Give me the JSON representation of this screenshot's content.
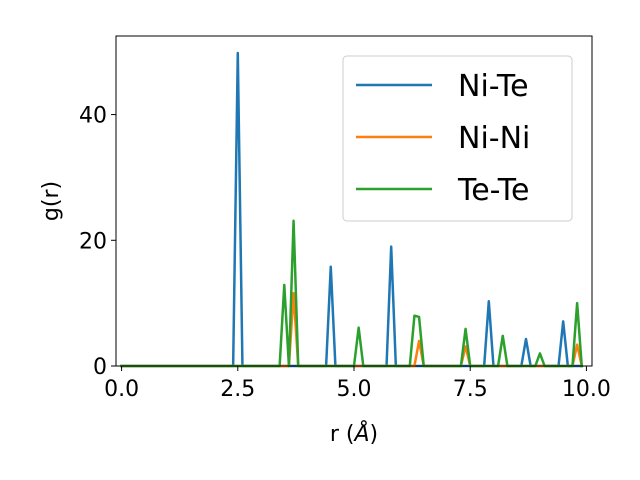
{
  "chart_data": {
    "type": "line",
    "xlabel_main": "r (",
    "xlabel_unit": "Å",
    "xlabel_close": ")",
    "ylabel": "g(r)",
    "xlim": [
      -0.12,
      10.12
    ],
    "ylim": [
      0,
      52.5
    ],
    "xticks": [
      0.0,
      2.5,
      5.0,
      7.5,
      10.0
    ],
    "xtick_labels": [
      "0.0",
      "2.5",
      "5.0",
      "7.5",
      "10.0"
    ],
    "yticks": [
      0,
      20,
      40
    ],
    "ytick_labels": [
      "0",
      "20",
      "40"
    ],
    "grid": false,
    "legend_position": "top-right",
    "series": [
      {
        "name": "Ni-Te",
        "color": "#1f77b4",
        "points": [
          [
            0.0,
            0
          ],
          [
            2.4,
            0
          ],
          [
            2.5,
            49.8
          ],
          [
            2.6,
            0
          ],
          [
            4.4,
            0
          ],
          [
            4.5,
            15.8
          ],
          [
            4.6,
            0
          ],
          [
            5.7,
            0
          ],
          [
            5.8,
            19.0
          ],
          [
            5.9,
            0
          ],
          [
            7.8,
            0
          ],
          [
            7.9,
            10.3
          ],
          [
            8.0,
            0
          ],
          [
            8.6,
            0
          ],
          [
            8.7,
            4.3
          ],
          [
            8.8,
            0
          ],
          [
            9.4,
            0
          ],
          [
            9.5,
            7.1
          ],
          [
            9.6,
            0
          ],
          [
            9.9,
            0
          ]
        ]
      },
      {
        "name": "Ni-Ni",
        "color": "#ff7f0e",
        "points": [
          [
            0.0,
            0
          ],
          [
            3.6,
            0
          ],
          [
            3.7,
            11.6
          ],
          [
            3.8,
            0
          ],
          [
            6.3,
            0
          ],
          [
            6.4,
            4.0
          ],
          [
            6.5,
            0
          ],
          [
            7.3,
            0
          ],
          [
            7.4,
            3.1
          ],
          [
            7.5,
            0
          ],
          [
            9.7,
            0
          ],
          [
            9.8,
            3.4
          ],
          [
            9.9,
            0
          ]
        ]
      },
      {
        "name": "Te-Te",
        "color": "#2ca02c",
        "points": [
          [
            0.0,
            0
          ],
          [
            3.4,
            0
          ],
          [
            3.5,
            12.9
          ],
          [
            3.6,
            0
          ],
          [
            3.7,
            23.1
          ],
          [
            3.8,
            0
          ],
          [
            5.0,
            0
          ],
          [
            5.1,
            6.1
          ],
          [
            5.2,
            0
          ],
          [
            6.2,
            0
          ],
          [
            6.3,
            8.0
          ],
          [
            6.4,
            7.8
          ],
          [
            6.5,
            0
          ],
          [
            7.3,
            0
          ],
          [
            7.4,
            5.9
          ],
          [
            7.5,
            0
          ],
          [
            8.1,
            0
          ],
          [
            8.2,
            4.8
          ],
          [
            8.3,
            0
          ],
          [
            8.9,
            0
          ],
          [
            9.0,
            2.0
          ],
          [
            9.1,
            0
          ],
          [
            9.7,
            0
          ],
          [
            9.8,
            10.0
          ],
          [
            9.9,
            0
          ]
        ]
      }
    ]
  }
}
